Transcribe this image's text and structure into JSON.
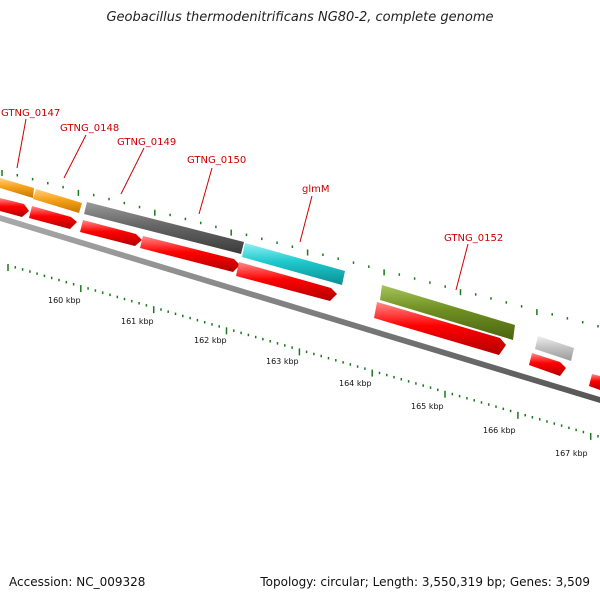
{
  "title": "Geobacillus thermodenitrificans NG80-2, complete genome",
  "footer": {
    "accession": "Accession: NC_009328",
    "summary": "Topology: circular; Length: 3,550,319 bp; Genes: 3,509"
  },
  "kbp_labels": [
    "160 kbp",
    "161 kbp",
    "162 kbp",
    "163 kbp",
    "164 kbp",
    "165 kbp",
    "166 kbp",
    "167 kbp"
  ],
  "gene_labels": [
    "GTNG_0147",
    "GTNG_0148",
    "GTNG_0149",
    "GTNG_0150",
    "glmM",
    "GTNG_0152"
  ],
  "colors": {
    "orange": "#f7a11a",
    "gray": "#666666",
    "cyan": "#1ec8cc",
    "olive": "#6f8f22",
    "light_gray": "#c4c4c4",
    "red": "#ff0000",
    "tick_green": "#1a7a1a",
    "label_red": "#cc0000"
  }
}
